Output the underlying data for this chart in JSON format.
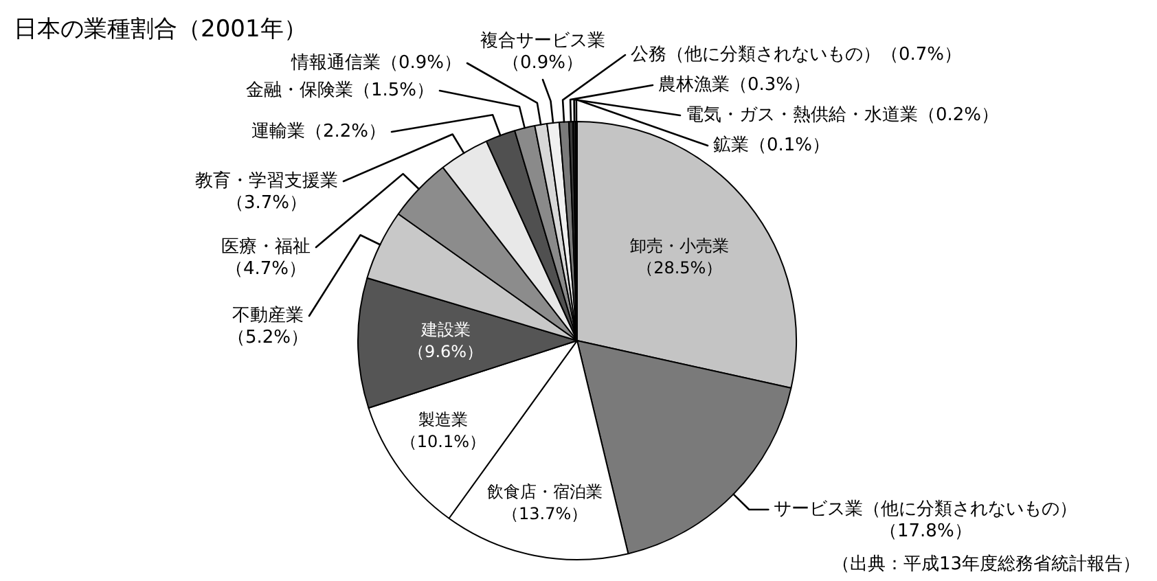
{
  "chart_data": {
    "type": "pie",
    "title": "日本の業種割合（2001年）",
    "categories": [
      "卸売・小売業",
      "サービス業（他に分類されないもの）",
      "飲食店・宿泊業",
      "製造業",
      "建設業",
      "不動産業",
      "医療・福祉",
      "教育・学習支援業",
      "運輸業",
      "金融・保険業",
      "情報通信業",
      "複合サービス業",
      "公務（他に分類されないもの）",
      "農林漁業",
      "電気・ガス・熱供給・水道業",
      "鉱業"
    ],
    "values": [
      28.5,
      17.8,
      13.7,
      10.1,
      9.6,
      5.2,
      4.7,
      3.7,
      2.2,
      1.5,
      0.9,
      0.9,
      0.7,
      0.3,
      0.2,
      0.1
    ],
    "value_labels": [
      "（28.5%）",
      "（17.8%）",
      "（13.7%）",
      "（10.1%）",
      "（9.6%）",
      "（5.2%）",
      "（4.7%）",
      "（3.7%）",
      "（2.2%）",
      "（1.5%）",
      "（0.9%）",
      "（0.9%）",
      "（0.7%）",
      "（0.3%）",
      "（0.2%）",
      "（0.1%）"
    ],
    "colors": [
      "#c4c4c4",
      "#7a7a7a",
      "#ffffff",
      "#ffffff",
      "#555555",
      "#c8c8c8",
      "#8c8c8c",
      "#e8e8e8",
      "#505050",
      "#8a8a8a",
      "#d8d8d8",
      "#f0f0f0",
      "#7a7a7a",
      "#3a3a3a",
      "#1a1a1a",
      "#909090"
    ],
    "annotations": [
      "（出典：平成13年度総務省統計報告）"
    ],
    "legend": false
  }
}
